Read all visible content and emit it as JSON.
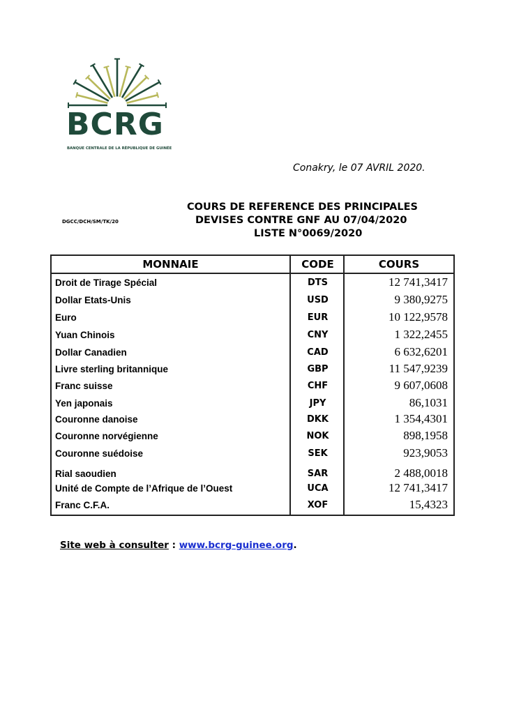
{
  "logo": {
    "name": "BCRG",
    "subtitle": "BANQUE CENTRALE DE LA RÉPUBLIQUE DE GUINÉE",
    "colors": {
      "green": "#1f4a3a",
      "gold": "#b8b85a"
    }
  },
  "header": {
    "place_date": "Conakry, le 07 AVRIL 2020.",
    "reference": "DGCC/DCH/SM/TK/20",
    "title_lines": [
      "COURS DE REFERENCE DES PRINCIPALES",
      "DEVISES CONTRE GNF AU  07/04/2020",
      "LISTE N°0069/2020"
    ]
  },
  "table": {
    "headers": {
      "currency": "MONNAIE",
      "code": "CODE",
      "rate": "COURS"
    },
    "rows": [
      {
        "currency": "Droit de Tirage Spécial",
        "code": "DTS",
        "rate": "12 741,3417"
      },
      {
        "currency": "Dollar Etats-Unis",
        "code": "USD",
        "rate": "9 380,9275"
      },
      {
        "currency": "Euro",
        "code": "EUR",
        "rate": "10 122,9578"
      },
      {
        "currency": "Yuan Chinois",
        "code": "CNY",
        "rate": "1 322,2455"
      },
      {
        "currency": "Dollar Canadien",
        "code": "CAD",
        "rate": "6 632,6201"
      },
      {
        "currency": "Livre sterling britannique",
        "code": "GBP",
        "rate": "11 547,9239"
      },
      {
        "currency": "Franc suisse",
        "code": "CHF",
        "rate": "9 607,0608"
      },
      {
        "currency": "Yen japonais",
        "code": "JPY",
        "rate": "86,1031"
      },
      {
        "currency": "Couronne danoise",
        "code": "DKK",
        "rate": "1 354,4301"
      },
      {
        "currency": "Couronne norvégienne",
        "code": "NOK",
        "rate": "898,1958"
      },
      {
        "currency": "Couronne suédoise",
        "code": "SEK",
        "rate": "923,9053"
      },
      {
        "currency": "Rial saoudien",
        "code": "SAR",
        "rate": "2 488,0018"
      },
      {
        "currency": "Unité de Compte de l’Afrique de l’Ouest",
        "code": "UCA",
        "rate": "12 741,3417"
      },
      {
        "currency": "Franc C.F.A.",
        "code": "XOF",
        "rate": "15,4323"
      }
    ]
  },
  "footer": {
    "label": "Site web à consulter",
    "separator": " : ",
    "link": "www.bcrg-guinee.org",
    "end": "."
  }
}
